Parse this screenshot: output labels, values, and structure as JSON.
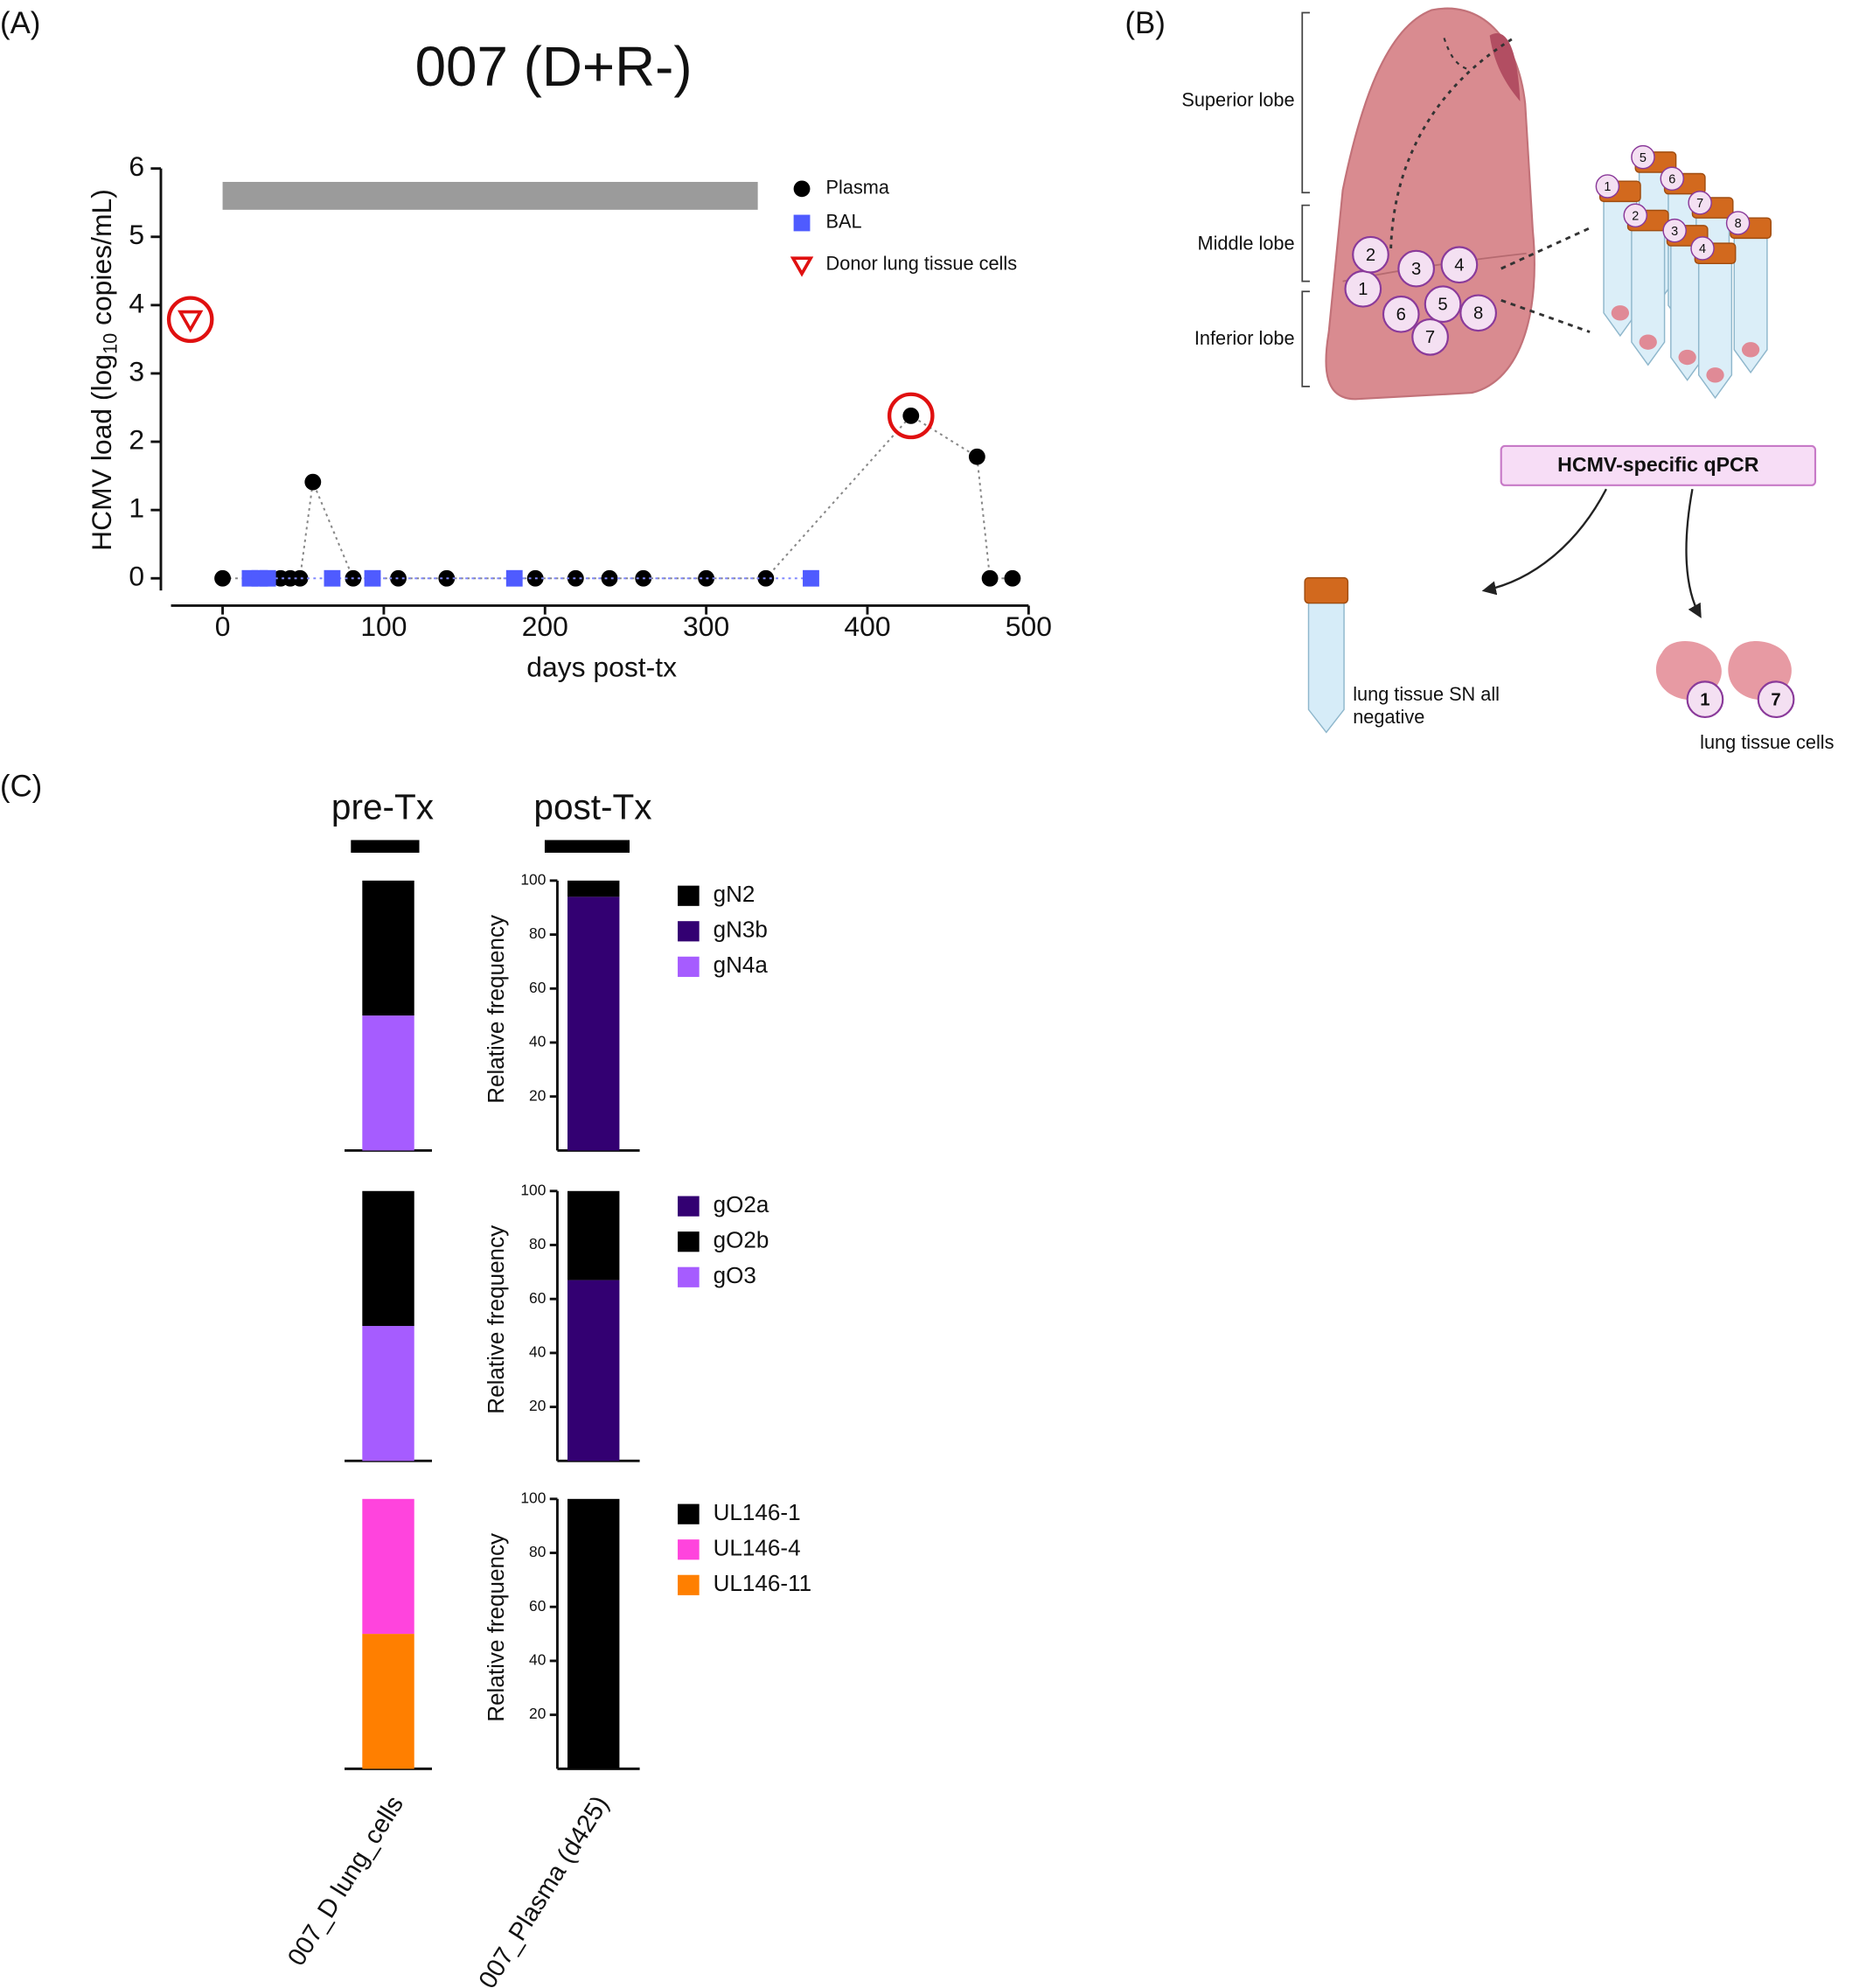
{
  "panel_labels": [
    "(A)",
    "(B)",
    "(C)"
  ],
  "chart_data": [
    {
      "type": "line",
      "title": "007 (D+R-)",
      "ylabel": {
        "text": "HCMV load (log",
        "sub": "10",
        "rest": " copies/mL)"
      },
      "xlabel": "days post-tx",
      "xlim": [
        -32,
        500
      ],
      "ylim": [
        -0.4,
        6
      ],
      "xticks": [
        0,
        100,
        200,
        300,
        400,
        500
      ],
      "yticks": [
        0,
        1,
        2,
        3,
        4,
        5,
        6
      ],
      "treatment_bar": {
        "x": [
          0,
          332
        ],
        "y": 5.6,
        "color": "#9b9b9b"
      },
      "legend": "upper right",
      "series": [
        {
          "name": "Plasma",
          "color": "#000000",
          "marker": "circle",
          "connect": true,
          "line_color": "#888888",
          "x": [
            0,
            36,
            42,
            48,
            56,
            81,
            109,
            139,
            194,
            219,
            240,
            261,
            300,
            337,
            427,
            468,
            476,
            490
          ],
          "values": [
            0,
            0,
            0,
            0,
            1.41,
            0,
            0,
            0,
            0,
            0,
            0,
            0,
            0,
            0,
            2.38,
            1.78,
            0,
            0
          ],
          "highlight": [
            14
          ]
        },
        {
          "name": "BAL",
          "color": "#4f5bff",
          "marker": "square",
          "connect": true,
          "line_color": "#8088ff",
          "x": [
            17,
            23,
            28,
            68,
            93,
            181,
            365
          ],
          "values": [
            0,
            0,
            0,
            0,
            0,
            0,
            0
          ]
        },
        {
          "name": "Donor lung tissue cells",
          "color": "#e01010",
          "marker": "triangle",
          "connect": false,
          "x": [
            -20
          ],
          "values": [
            3.79
          ],
          "highlight": [
            0
          ]
        }
      ]
    },
    {
      "type": "stacked_bar",
      "group_labels": [
        "pre-Tx",
        "post-Tx"
      ],
      "categories": [
        "007_D lung_cells",
        "007_Plasma (d425)"
      ],
      "panels": [
        {
          "ylabel": "Relative frequency",
          "ylim": [
            0,
            100
          ],
          "yticks": [
            20,
            40,
            60,
            80,
            100
          ],
          "stack_order": [
            2,
            1,
            0
          ],
          "series": [
            {
              "name": "gN2",
              "color": "#000000",
              "values": [
                50,
                6
              ]
            },
            {
              "name": "gN3b",
              "color": "#330072",
              "values": [
                0,
                94
              ]
            },
            {
              "name": "gN4a",
              "color": "#a65cff",
              "values": [
                50,
                0
              ]
            }
          ]
        },
        {
          "ylabel": "Relative frequency",
          "ylim": [
            0,
            100
          ],
          "yticks": [
            20,
            40,
            60,
            80,
            100
          ],
          "stack_order": [
            2,
            0,
            1
          ],
          "series": [
            {
              "name": "gO2a",
              "color": "#330072",
              "values": [
                0,
                67
              ]
            },
            {
              "name": "gO2b",
              "color": "#000000",
              "values": [
                50,
                33
              ]
            },
            {
              "name": "gO3",
              "color": "#a65cff",
              "values": [
                50,
                0
              ]
            }
          ]
        },
        {
          "ylabel": "Relative frequency",
          "ylim": [
            0,
            100
          ],
          "yticks": [
            20,
            40,
            60,
            80,
            100
          ],
          "stack_order": [
            2,
            1,
            0
          ],
          "series": [
            {
              "name": "UL146-1",
              "color": "#000000",
              "values": [
                0,
                100
              ]
            },
            {
              "name": "UL146-4",
              "color": "#ff44dd",
              "values": [
                50,
                0
              ]
            },
            {
              "name": "UL146-11",
              "color": "#ff7f00",
              "values": [
                50,
                0
              ]
            }
          ]
        }
      ]
    }
  ],
  "diagram": {
    "lobes": [
      "Superior lobe",
      "Middle lobe",
      "Inferior lobe"
    ],
    "lung_sites": [
      1,
      2,
      3,
      4,
      5,
      6,
      7,
      8
    ],
    "tube_labels": [
      1,
      2,
      3,
      4,
      5,
      6,
      7,
      8
    ],
    "assay": "HCMV-specific qPCR",
    "supernatant_result": [
      "lung tissue SN all",
      "negative"
    ],
    "positive_sites": [
      1,
      7
    ],
    "cells_result": "lung tissue cells"
  }
}
